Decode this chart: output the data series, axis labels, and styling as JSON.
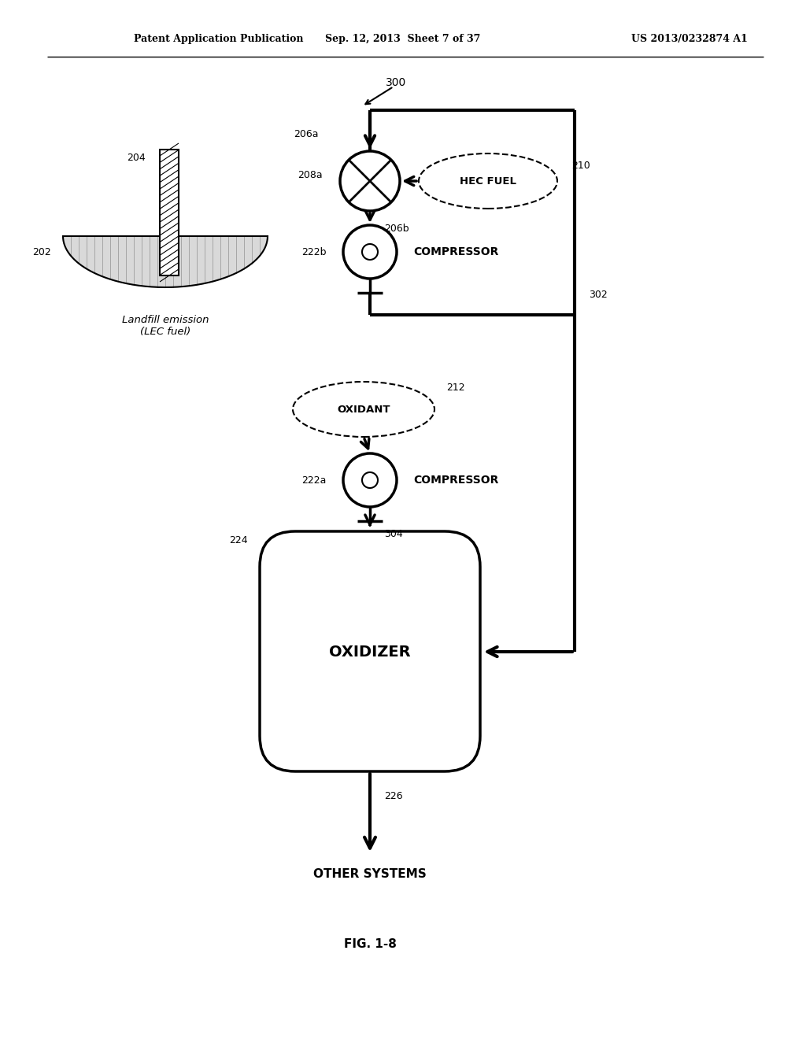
{
  "header_left": "Patent Application Publication",
  "header_mid": "Sep. 12, 2013  Sheet 7 of 37",
  "header_right": "US 2013/0232874 A1",
  "fig_label": "FIG. 1-8",
  "diagram_label": "300",
  "bg_color": "#ffffff",
  "label_206a": "206a",
  "label_208a": "208a",
  "label_206b": "206b",
  "label_210": "210",
  "label_204": "204",
  "label_202": "202",
  "label_222b": "222b",
  "label_302": "302",
  "label_212": "212",
  "label_222a": "222a",
  "label_224": "224",
  "label_304": "304",
  "label_226": "226",
  "text_hec_fuel": "HEC FUEL",
  "text_compressor1": "COMPRESSOR",
  "text_landfill": "Landfill emission\n(LEC fuel)",
  "text_oxidant": "OXIDANT",
  "text_compressor2": "COMPRESSOR",
  "text_oxidizer": "OXIDIZER",
  "text_other_systems": "OTHER SYSTEMS"
}
